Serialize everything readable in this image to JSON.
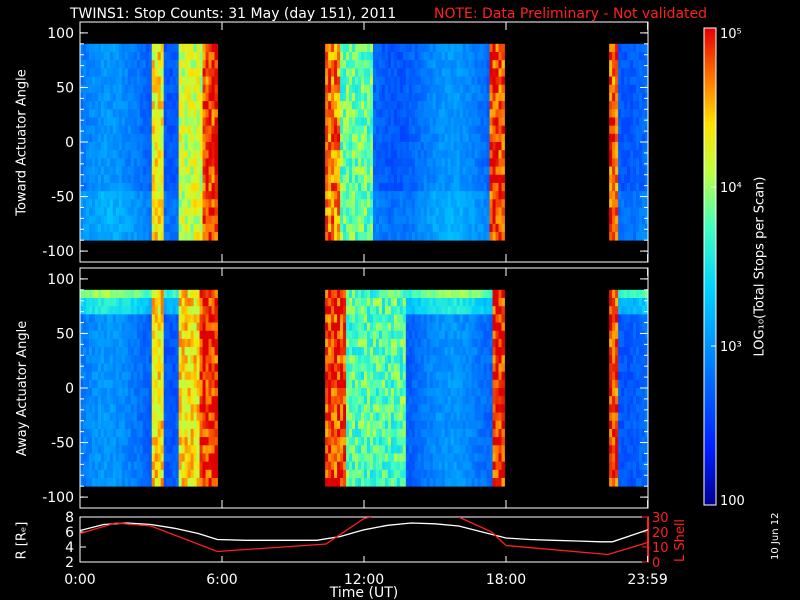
{
  "title": {
    "main": "TWINS1: Stop Counts: 31 May (day 151), 2011",
    "note": "NOTE: Data Preliminary - Not validated",
    "note_color": "#ff2020"
  },
  "date_stamp": "10 Jun 12",
  "chart_data": [
    {
      "type": "heatmap",
      "panel": "toward",
      "ylabel": "Toward Actuator Angle",
      "ylim": [
        -110,
        110
      ],
      "yticks": [
        100,
        50,
        0,
        -50,
        -100
      ],
      "data_y_range": [
        -90,
        90
      ],
      "x_hours": [
        0,
        24
      ],
      "data_gaps_hours": [
        [
          5.8,
          10.4
        ],
        [
          18.0,
          22.3
        ]
      ],
      "bright_bands_hours": [
        [
          3.0,
          3.5,
          0.78
        ],
        [
          4.2,
          5.2,
          0.72
        ],
        [
          5.2,
          5.8,
          0.95
        ],
        [
          10.4,
          11.0,
          0.9
        ],
        [
          11.0,
          12.4,
          0.62
        ],
        [
          17.3,
          18.0,
          0.95
        ],
        [
          22.3,
          22.7,
          0.92
        ]
      ]
    },
    {
      "type": "heatmap",
      "panel": "away",
      "ylabel": "Away Actuator Angle",
      "ylim": [
        -110,
        110
      ],
      "yticks": [
        100,
        50,
        0,
        -50,
        -100
      ],
      "data_y_range": [
        -90,
        90
      ],
      "x_hours": [
        0,
        24
      ],
      "data_gaps_hours": [
        [
          5.8,
          10.4
        ],
        [
          18.0,
          22.3
        ]
      ],
      "bright_bands_hours": [
        [
          3.0,
          3.5,
          0.8
        ],
        [
          4.2,
          5.0,
          0.8
        ],
        [
          5.0,
          5.8,
          0.97
        ],
        [
          10.4,
          11.2,
          0.95
        ],
        [
          11.2,
          13.8,
          0.6
        ],
        [
          17.4,
          18.0,
          0.97
        ],
        [
          22.3,
          22.7,
          0.95
        ]
      ]
    },
    {
      "type": "line",
      "panel": "orbit",
      "ylabel": "R [Rₑ]",
      "ylabel_right": "L Shell",
      "ylim": [
        2,
        8
      ],
      "yticks": [
        2,
        4,
        6,
        8
      ],
      "ylim_right": [
        0,
        30
      ],
      "yticks_right": [
        0,
        10,
        20,
        30
      ],
      "series": [
        {
          "axis": "left",
          "color": "#ffffff",
          "x": [
            0,
            1,
            2,
            3,
            4,
            5,
            5.8,
            7,
            9,
            10,
            11,
            12,
            13,
            14,
            15,
            16,
            17,
            18,
            19,
            20,
            21,
            22,
            22.5,
            23.99
          ],
          "y": [
            6.2,
            7.0,
            7.2,
            7.0,
            6.5,
            5.8,
            5.0,
            4.9,
            4.9,
            4.9,
            5.4,
            6.3,
            6.9,
            7.2,
            7.1,
            6.8,
            6.0,
            5.2,
            5.0,
            4.9,
            4.8,
            4.7,
            4.7,
            6.3
          ]
        },
        {
          "axis": "right",
          "color": "#ff2020",
          "x": [
            0,
            1.5,
            3,
            5.8,
            10.4,
            12.0,
            12.3,
            14.0,
            16.0,
            17.4,
            18.0,
            22.3,
            23.99
          ],
          "y": [
            19,
            26,
            24,
            7,
            12,
            29,
            30,
            null,
            30,
            20,
            11,
            5,
            13
          ]
        }
      ],
      "x_tick_labels": [
        "0:00",
        "6:00",
        "12:00",
        "18:00",
        "23:59"
      ],
      "x_tick_hours": [
        0,
        6,
        12,
        18,
        23.983
      ],
      "xlabel": "Time (UT)"
    }
  ],
  "colorbar": {
    "label": "LOG₁₀(Total Stops per Scan)",
    "scale": "log",
    "range": [
      100,
      100000
    ],
    "tick_labels": [
      "10⁵",
      "10⁴",
      "10³",
      "100"
    ],
    "tick_values": [
      100000,
      10000,
      1000,
      100
    ]
  }
}
